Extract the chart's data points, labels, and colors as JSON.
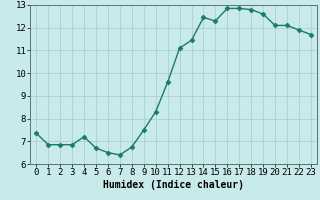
{
  "x": [
    0,
    1,
    2,
    3,
    4,
    5,
    6,
    7,
    8,
    9,
    10,
    11,
    12,
    13,
    14,
    15,
    16,
    17,
    18,
    19,
    20,
    21,
    22,
    23
  ],
  "y": [
    7.35,
    6.85,
    6.85,
    6.85,
    7.2,
    6.7,
    6.5,
    6.4,
    6.75,
    7.5,
    8.3,
    9.6,
    11.1,
    11.45,
    12.45,
    12.3,
    12.85,
    12.85,
    12.8,
    12.6,
    12.1,
    12.1,
    11.9,
    11.7
  ],
  "line_color": "#1a7a6e",
  "marker": "D",
  "markersize": 2.5,
  "linewidth": 1.0,
  "bg_color": "#c8eaea",
  "grid_color": "#a8cccc",
  "xlabel": "Humidex (Indice chaleur)",
  "xlabel_fontsize": 7,
  "tick_fontsize": 6.5,
  "ylim": [
    6,
    13
  ],
  "xlim": [
    -0.5,
    23.5
  ],
  "yticks": [
    6,
    7,
    8,
    9,
    10,
    11,
    12,
    13
  ],
  "xticks": [
    0,
    1,
    2,
    3,
    4,
    5,
    6,
    7,
    8,
    9,
    10,
    11,
    12,
    13,
    14,
    15,
    16,
    17,
    18,
    19,
    20,
    21,
    22,
    23
  ]
}
